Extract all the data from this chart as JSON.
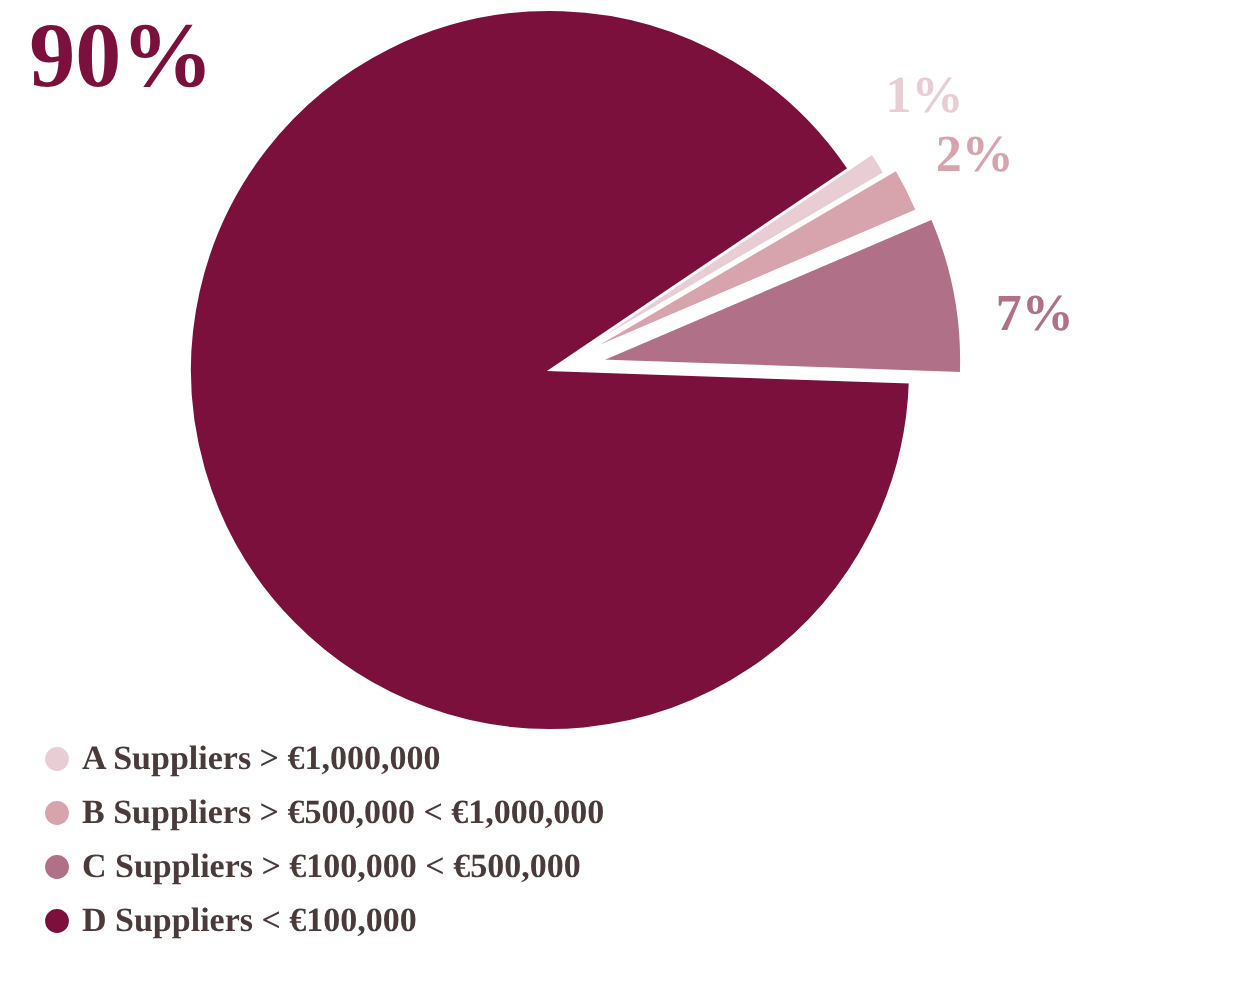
{
  "chart_data": {
    "type": "pie",
    "categories": [
      "A Suppliers > €1,000,000",
      "B Suppliers  > €500,000  < €1,000,000",
      "C Suppliers  > €100,000  < €500,000",
      "D Suppliers  < €100,000"
    ],
    "values": [
      1,
      2,
      7,
      90
    ],
    "colors": [
      "#e8cdd5",
      "#d7a4ae",
      "#b07088",
      "#7b103d"
    ],
    "value_labels": [
      "1%",
      "2%",
      "7%",
      "90%"
    ],
    "legend": "bottom left"
  }
}
